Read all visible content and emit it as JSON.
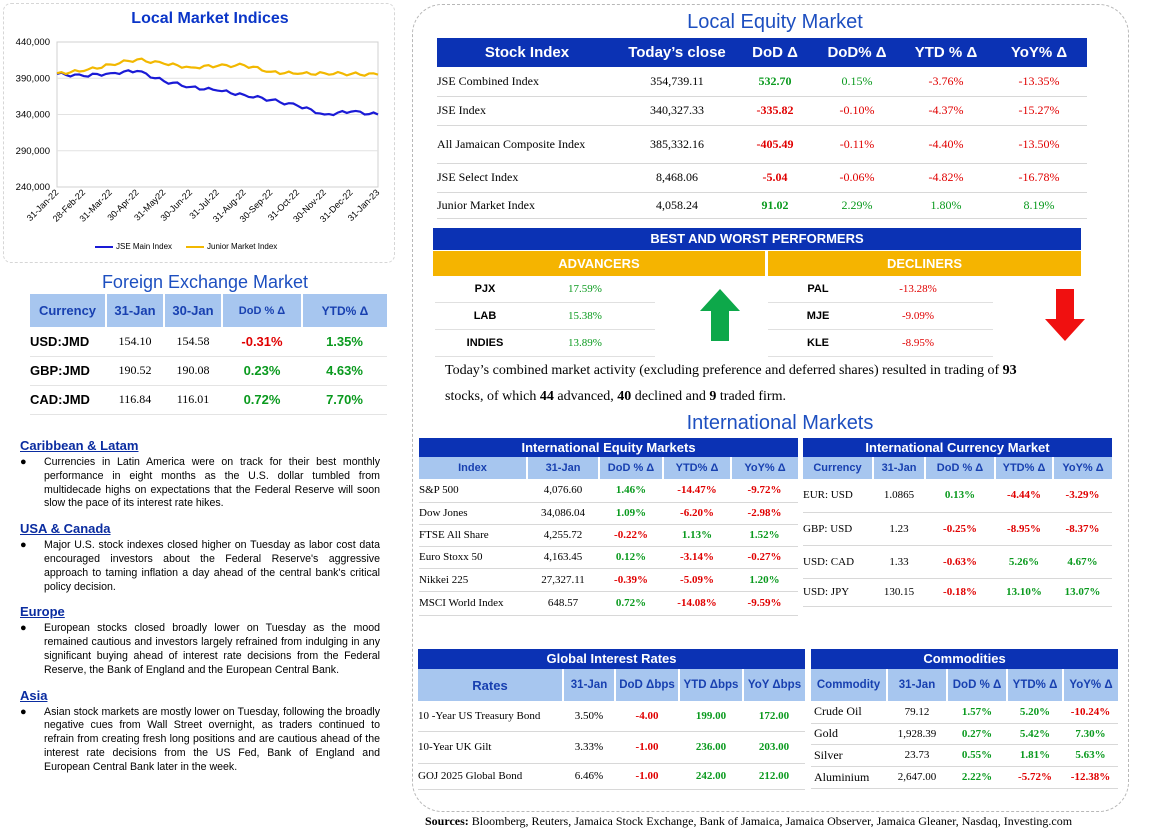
{
  "local_indices": {
    "title": "Local Market Indices",
    "y_ticks": [
      "440,000",
      "390,000",
      "340,000",
      "290,000",
      "240,000"
    ],
    "x_ticks": [
      "31-Jan-22",
      "28-Feb-22",
      "31-Mar-22",
      "30-Apr-22",
      "31-May22",
      "30-Jun-22",
      "31-Jul-22",
      "31-Aug-22",
      "30-Sep-22",
      "31-Oct-22",
      "30-Nov-22",
      "31-Dec-22",
      "31-Jan-23"
    ],
    "legend": [
      "JSE Main Index",
      "Junior Market Index"
    ]
  },
  "chart_data": {
    "type": "line",
    "ylim": [
      240000,
      440000
    ],
    "categories": [
      "31-Jan-22",
      "28-Feb-22",
      "31-Mar-22",
      "30-Apr-22",
      "31-May22",
      "30-Jun-22",
      "31-Jul-22",
      "31-Aug-22",
      "30-Sep-22",
      "31-Oct-22",
      "30-Nov-22",
      "31-Dec-22",
      "31-Jan-23"
    ],
    "series": [
      {
        "name": "JSE Main Index",
        "color": "#1a1ad6",
        "values": [
          396000,
          393000,
          397000,
          400000,
          386000,
          378000,
          373000,
          367000,
          360000,
          352000,
          340000,
          344000,
          340000
        ]
      },
      {
        "name": "Junior Market Index",
        "color": "#f2b800",
        "values": [
          397000,
          400000,
          409000,
          416000,
          410000,
          405000,
          407000,
          408000,
          399000,
          396000,
          397000,
          396000,
          395000
        ]
      }
    ]
  },
  "fx": {
    "title": "Foreign Exchange Market",
    "headers": [
      "Currency",
      "31-Jan",
      "30-Jan",
      "DoD % Δ",
      "YTD% Δ"
    ],
    "rows": [
      {
        "c": "USD:JMD",
        "a": "154.10",
        "b": "154.58",
        "d": "-0.31%",
        "y": "1.35%"
      },
      {
        "c": "GBP:JMD",
        "a": "190.52",
        "b": "190.08",
        "d": "0.23%",
        "y": "4.63%"
      },
      {
        "c": "CAD:JMD",
        "a": "116.84",
        "b": "116.01",
        "d": "0.72%",
        "y": "7.70%"
      }
    ]
  },
  "news": [
    {
      "title": "Caribbean & Latam",
      "text": "Currencies in Latin America were on track for their best monthly performance in eight months as the U.S. dollar tumbled from multidecade highs on expectations that the Federal Reserve will soon slow the pace of its interest rate hikes."
    },
    {
      "title": "USA & Canada",
      "text": "Major U.S. stock indexes closed higher on Tuesday as labor cost data encouraged investors about the Federal Reserve's aggressive approach to taming inflation a day ahead of the central bank's critical policy decision."
    },
    {
      "title": "Europe",
      "text": "European stocks closed broadly lower on Tuesday as the mood remained cautious and investors largely refrained from indulging in any significant buying ahead of interest rate decisions from the Federal Reserve, the Bank of England and the European Central Bank."
    },
    {
      "title": "Asia",
      "text": "Asian stock markets are mostly lower on Tuesday, following the broadly negative cues from Wall Street overnight, as traders continued to refrain from creating fresh long positions and are cautious ahead of the interest rate decisions from the US Fed, Bank of England and European Central Bank later in the week."
    }
  ],
  "equity": {
    "title": "Local Equity Market",
    "headers": [
      "Stock Index",
      "Today’s close",
      "DoD  Δ",
      "DoD% Δ",
      "YTD % Δ",
      "YoY% Δ"
    ],
    "rows": [
      {
        "n": "JSE Combined Index",
        "c": "354,739.11",
        "d": "532.70",
        "p": "0.15%",
        "y": "-3.76%",
        "yy": "-13.35%"
      },
      {
        "n": "JSE Index",
        "c": "340,327.33",
        "d": "-335.82",
        "p": "-0.10%",
        "y": "-4.37%",
        "yy": "-15.27%"
      },
      {
        "n": "All Jamaican Composite Index",
        "c": "385,332.16",
        "d": "-405.49",
        "p": "-0.11%",
        "y": "-4.40%",
        "yy": "-13.50%"
      },
      {
        "n": "JSE Select Index",
        "c": "8,468.06",
        "d": "-5.04",
        "p": "-0.06%",
        "y": "-4.82%",
        "yy": "-16.78%"
      },
      {
        "n": "Junior Market Index",
        "c": "4,058.24",
        "d": "91.02",
        "p": "2.29%",
        "y": "1.80%",
        "yy": "8.19%"
      }
    ]
  },
  "performers": {
    "title": "BEST AND WORST PERFORMERS",
    "adv_label": "ADVANCERS",
    "dec_label": "DECLINERS",
    "advancers": [
      {
        "s": "PJX",
        "v": "17.59%"
      },
      {
        "s": "LAB",
        "v": "15.38%"
      },
      {
        "s": "INDIES",
        "v": "13.89%"
      }
    ],
    "decliners": [
      {
        "s": "PAL",
        "v": "-13.28%"
      },
      {
        "s": "MJE",
        "v": "-9.09%"
      },
      {
        "s": "KLE",
        "v": "-8.95%"
      }
    ]
  },
  "summary": {
    "p1": "Today’s combined market activity (excluding preference and deferred shares) resulted in trading of ",
    "n1": "93",
    "p2": "stocks, of which ",
    "n2": "44",
    "p3": " advanced, ",
    "n3": "40",
    "p4": " declined and ",
    "n4": "9",
    "p5": " traded firm."
  },
  "intl": {
    "title": "International Markets",
    "equity_title": "International Equity Markets",
    "equity_headers": [
      "Index",
      "31-Jan",
      "DoD % Δ",
      "YTD% Δ",
      "YoY% Δ"
    ],
    "equity_rows": [
      {
        "n": "S&P 500",
        "c": "4,076.60",
        "d": "1.46%",
        "y": "-14.47%",
        "yy": "-9.72%"
      },
      {
        "n": "Dow Jones",
        "c": "34,086.04",
        "d": "1.09%",
        "y": "-6.20%",
        "yy": "-2.98%"
      },
      {
        "n": "FTSE All Share",
        "c": "4,255.72",
        "d": "-0.22%",
        "y": "1.13%",
        "yy": "1.52%"
      },
      {
        "n": "Euro Stoxx 50",
        "c": "4,163.45",
        "d": "0.12%",
        "y": "-3.14%",
        "yy": "-0.27%"
      },
      {
        "n": "Nikkei 225",
        "c": "27,327.11",
        "d": "-0.39%",
        "y": "-5.09%",
        "yy": "1.20%"
      },
      {
        "n": "MSCI World Index",
        "c": "648.57",
        "d": "0.72%",
        "y": "-14.08%",
        "yy": "-9.59%"
      }
    ],
    "currency_title": "International Currency Market",
    "currency_headers": [
      "Currency",
      "31-Jan",
      "DoD % Δ",
      "YTD% Δ",
      "YoY% Δ"
    ],
    "currency_rows": [
      {
        "n": "EUR: USD",
        "c": "1.0865",
        "d": "0.13%",
        "y": "-4.44%",
        "yy": "-3.29%"
      },
      {
        "n": "GBP: USD",
        "c": "1.23",
        "d": "-0.25%",
        "y": "-8.95%",
        "yy": "-8.37%"
      },
      {
        "n": "USD: CAD",
        "c": "1.33",
        "d": "-0.63%",
        "y": "5.26%",
        "yy": "4.67%"
      },
      {
        "n": "USD: JPY",
        "c": "130.15",
        "d": "-0.18%",
        "y": "13.10%",
        "yy": "13.07%"
      }
    ],
    "rates_title": "Global Interest Rates",
    "rates_headers": [
      "Rates",
      "31-Jan",
      "DoD Δbps",
      "YTD Δbps",
      "YoY Δbps"
    ],
    "rates_rows": [
      {
        "n": "10 -Year US Treasury Bond",
        "c": "3.50%",
        "d": "-4.00",
        "y": "199.00",
        "yy": "172.00"
      },
      {
        "n": "10-Year UK Gilt",
        "c": "3.33%",
        "d": "-1.00",
        "y": "236.00",
        "yy": "203.00"
      },
      {
        "n": "GOJ 2025 Global Bond",
        "c": "6.46%",
        "d": "-1.00",
        "y": "242.00",
        "yy": "212.00"
      }
    ],
    "comm_title": "Commodities",
    "comm_headers": [
      "Commodity",
      "31-Jan",
      "DoD % Δ",
      "YTD% Δ",
      "YoY% Δ"
    ],
    "comm_rows": [
      {
        "n": "Crude Oil",
        "c": "79.12",
        "d": "1.57%",
        "y": "5.20%",
        "yy": "-10.24%"
      },
      {
        "n": "Gold",
        "c": "1,928.39",
        "d": "0.27%",
        "y": "5.42%",
        "yy": "7.30%"
      },
      {
        "n": "Silver",
        "c": "23.73",
        "d": "0.55%",
        "y": "1.81%",
        "yy": "5.63%"
      },
      {
        "n": "Aluminium",
        "c": "2,647.00",
        "d": "2.22%",
        "y": "-5.72%",
        "yy": "-12.38%"
      }
    ]
  },
  "sources": {
    "label": "Sources:",
    "text": " Bloomberg, Reuters, Jamaica Stock Exchange, Bank of Jamaica, Jamaica Observer, Jamaica Gleaner, Nasdaq, Investing.com"
  },
  "colors": {
    "navy": "#0b32b4",
    "light": "#a7c6ef",
    "gold": "#f5b400",
    "pos": "#0a9a1e",
    "neg": "#e00000"
  }
}
